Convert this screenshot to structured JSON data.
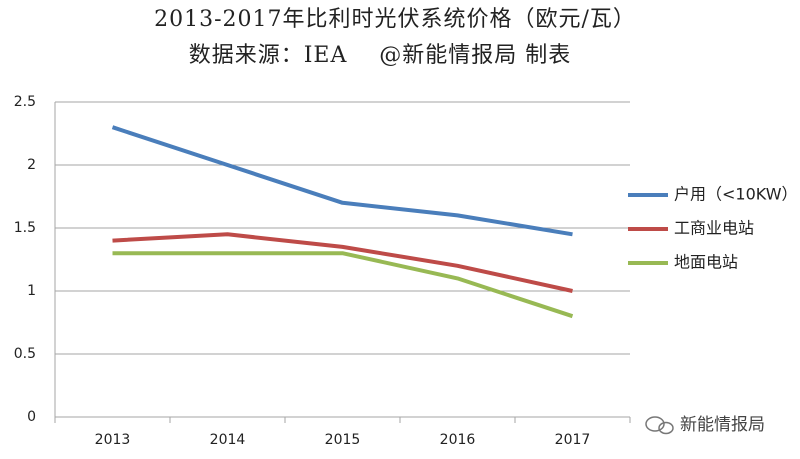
{
  "chart_data": {
    "type": "line",
    "title": "2013-2017年比利时光伏系统价格（欧元/瓦）",
    "subtitle": "数据来源：IEA    @新能情报局 制表",
    "categories": [
      "2013",
      "2014",
      "2015",
      "2016",
      "2017"
    ],
    "series": [
      {
        "name": "户用（<10KW）",
        "color": "#4a7ebb",
        "values": [
          2.3,
          2.0,
          1.7,
          1.6,
          1.45
        ]
      },
      {
        "name": "工商业电站",
        "color": "#be4b48",
        "values": [
          1.4,
          1.45,
          1.35,
          1.2,
          1.0
        ]
      },
      {
        "name": "地面电站",
        "color": "#98b954",
        "values": [
          1.3,
          1.3,
          1.3,
          1.1,
          0.8
        ]
      }
    ],
    "ylim": [
      0,
      2.5
    ],
    "yticks": [
      0,
      0.5,
      1,
      1.5,
      2,
      2.5
    ],
    "grid": true,
    "legend": "right",
    "watermark": "新能情报局"
  }
}
